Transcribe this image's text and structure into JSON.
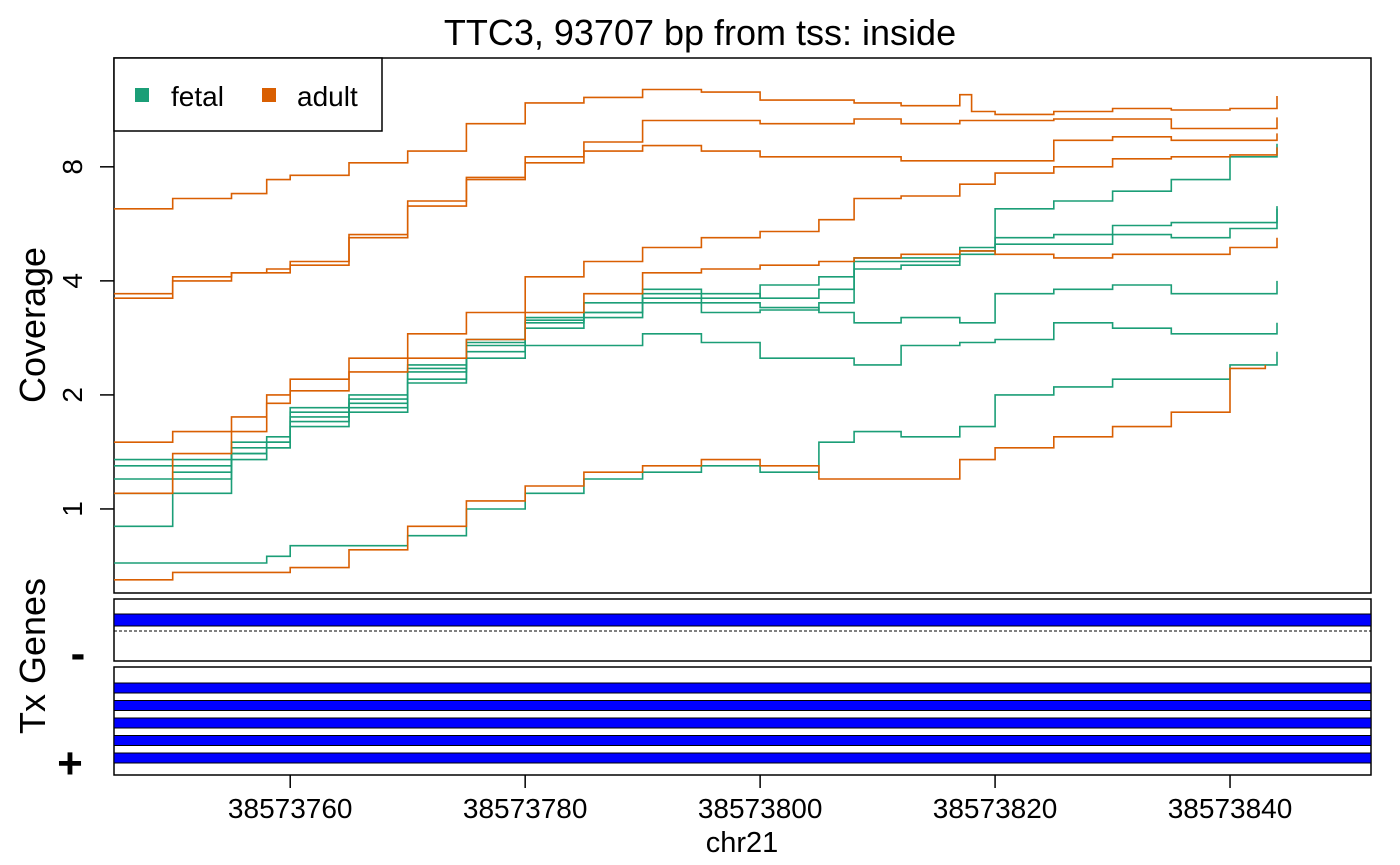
{
  "chart_data": {
    "type": "line",
    "title": "TTC3, 93707 bp from tss: inside",
    "xlabel": "chr21",
    "ylabel": "Coverage",
    "y_scale": "log",
    "x_range": [
      38573745,
      38573852
    ],
    "ylim": [
      0.6,
      15.5
    ],
    "y_ticks": [
      1,
      2,
      4,
      8
    ],
    "x_ticks": [
      38573760,
      38573780,
      38573800,
      38573820,
      38573840
    ],
    "legend": {
      "position": "top-left",
      "entries": [
        {
          "label": "fetal",
          "color": "#1b9e77"
        },
        {
          "label": "adult",
          "color": "#d95f02"
        }
      ]
    },
    "series": [
      {
        "group": "fetal",
        "color": "#1b9e77",
        "points": [
          [
            38573745,
            1.1
          ],
          [
            38573750,
            1.2
          ],
          [
            38573755,
            1.4
          ],
          [
            38573758,
            1.5
          ],
          [
            38573760,
            1.8
          ],
          [
            38573765,
            1.95
          ],
          [
            38573770,
            2.3
          ],
          [
            38573775,
            2.7
          ],
          [
            38573780,
            3.1
          ],
          [
            38573785,
            3.3
          ],
          [
            38573790,
            3.6
          ],
          [
            38573795,
            3.3
          ],
          [
            38573800,
            3.35
          ],
          [
            38573805,
            3.5
          ],
          [
            38573808,
            4.3
          ],
          [
            38573812,
            4.4
          ],
          [
            38573817,
            4.8
          ],
          [
            38573820,
            6.2
          ],
          [
            38573825,
            6.5
          ],
          [
            38573830,
            6.9
          ],
          [
            38573835,
            7.4
          ],
          [
            38573840,
            8.5
          ],
          [
            38573844,
            9.2
          ]
        ]
      },
      {
        "group": "fetal",
        "color": "#1b9e77",
        "points": [
          [
            38573745,
            1.3
          ],
          [
            38573750,
            1.35
          ],
          [
            38573755,
            1.5
          ],
          [
            38573758,
            1.55
          ],
          [
            38573760,
            1.85
          ],
          [
            38573765,
            2.0
          ],
          [
            38573770,
            2.4
          ],
          [
            38573775,
            2.8
          ],
          [
            38573780,
            3.2
          ],
          [
            38573785,
            3.5
          ],
          [
            38573790,
            3.8
          ],
          [
            38573795,
            3.7
          ],
          [
            38573800,
            3.6
          ],
          [
            38573805,
            3.8
          ],
          [
            38573808,
            4.5
          ],
          [
            38573812,
            4.5
          ],
          [
            38573817,
            4.9
          ],
          [
            38573820,
            5.2
          ],
          [
            38573825,
            5.3
          ],
          [
            38573830,
            5.6
          ],
          [
            38573835,
            5.7
          ],
          [
            38573840,
            5.7
          ],
          [
            38573844,
            6.3
          ]
        ]
      },
      {
        "group": "fetal",
        "color": "#1b9e77",
        "points": [
          [
            38573745,
            1.35
          ],
          [
            38573750,
            1.3
          ],
          [
            38573755,
            1.45
          ],
          [
            38573758,
            1.5
          ],
          [
            38573760,
            1.75
          ],
          [
            38573765,
            1.9
          ],
          [
            38573770,
            2.35
          ],
          [
            38573775,
            2.75
          ],
          [
            38573780,
            3.15
          ],
          [
            38573785,
            3.3
          ],
          [
            38573790,
            3.7
          ],
          [
            38573795,
            3.6
          ],
          [
            38573800,
            3.9
          ],
          [
            38573805,
            4.1
          ],
          [
            38573808,
            4.6
          ],
          [
            38573812,
            4.6
          ],
          [
            38573817,
            4.7
          ],
          [
            38573820,
            5.0
          ],
          [
            38573825,
            5.0
          ],
          [
            38573830,
            5.3
          ],
          [
            38573835,
            5.2
          ],
          [
            38573840,
            5.5
          ],
          [
            38573844,
            6.2
          ]
        ]
      },
      {
        "group": "fetal",
        "color": "#1b9e77",
        "points": [
          [
            38573745,
            0.9
          ],
          [
            38573750,
            1.1
          ],
          [
            38573755,
            1.35
          ],
          [
            38573758,
            1.45
          ],
          [
            38573760,
            1.65
          ],
          [
            38573765,
            1.85
          ],
          [
            38573770,
            2.2
          ],
          [
            38573775,
            2.6
          ],
          [
            38573780,
            3.0
          ],
          [
            38573785,
            3.2
          ],
          [
            38573790,
            3.5
          ],
          [
            38573795,
            3.5
          ],
          [
            38573800,
            3.4
          ],
          [
            38573805,
            3.3
          ],
          [
            38573808,
            3.1
          ],
          [
            38573812,
            3.2
          ],
          [
            38573817,
            3.1
          ],
          [
            38573820,
            3.7
          ],
          [
            38573825,
            3.8
          ],
          [
            38573830,
            3.9
          ],
          [
            38573835,
            3.7
          ],
          [
            38573840,
            3.7
          ],
          [
            38573844,
            4.0
          ]
        ]
      },
      {
        "group": "fetal",
        "color": "#1b9e77",
        "points": [
          [
            38573745,
            1.2
          ],
          [
            38573750,
            1.25
          ],
          [
            38573755,
            1.4
          ],
          [
            38573758,
            1.45
          ],
          [
            38573760,
            1.7
          ],
          [
            38573765,
            1.8
          ],
          [
            38573770,
            2.15
          ],
          [
            38573775,
            2.5
          ],
          [
            38573780,
            2.7
          ],
          [
            38573785,
            2.7
          ],
          [
            38573790,
            2.9
          ],
          [
            38573795,
            2.75
          ],
          [
            38573800,
            2.5
          ],
          [
            38573805,
            2.5
          ],
          [
            38573808,
            2.4
          ],
          [
            38573812,
            2.7
          ],
          [
            38573817,
            2.75
          ],
          [
            38573820,
            2.8
          ],
          [
            38573825,
            3.1
          ],
          [
            38573830,
            3.0
          ],
          [
            38573835,
            2.9
          ],
          [
            38573840,
            2.9
          ],
          [
            38573844,
            3.1
          ]
        ]
      },
      {
        "group": "fetal",
        "color": "#1b9e77",
        "points": [
          [
            38573745,
            0.72
          ],
          [
            38573750,
            0.72
          ],
          [
            38573755,
            0.72
          ],
          [
            38573758,
            0.75
          ],
          [
            38573760,
            0.8
          ],
          [
            38573765,
            0.8
          ],
          [
            38573770,
            0.85
          ],
          [
            38573775,
            1.0
          ],
          [
            38573780,
            1.1
          ],
          [
            38573785,
            1.2
          ],
          [
            38573790,
            1.25
          ],
          [
            38573795,
            1.3
          ],
          [
            38573800,
            1.25
          ],
          [
            38573805,
            1.5
          ],
          [
            38573808,
            1.6
          ],
          [
            38573812,
            1.55
          ],
          [
            38573817,
            1.65
          ],
          [
            38573820,
            2.0
          ],
          [
            38573825,
            2.1
          ],
          [
            38573830,
            2.2
          ],
          [
            38573835,
            2.2
          ],
          [
            38573840,
            2.4
          ],
          [
            38573844,
            2.6
          ]
        ]
      },
      {
        "group": "adult",
        "color": "#d95f02",
        "points": [
          [
            38573745,
            6.2
          ],
          [
            38573750,
            6.6
          ],
          [
            38573755,
            6.8
          ],
          [
            38573758,
            7.4
          ],
          [
            38573760,
            7.6
          ],
          [
            38573765,
            8.2
          ],
          [
            38573770,
            8.8
          ],
          [
            38573775,
            10.4
          ],
          [
            38573780,
            11.8
          ],
          [
            38573785,
            12.2
          ],
          [
            38573790,
            12.8
          ],
          [
            38573795,
            12.6
          ],
          [
            38573800,
            12.0
          ],
          [
            38573805,
            12.0
          ],
          [
            38573808,
            11.8
          ],
          [
            38573812,
            11.6
          ],
          [
            38573817,
            12.4
          ],
          [
            38573818,
            11.2
          ],
          [
            38573820,
            11.0
          ],
          [
            38573825,
            11.2
          ],
          [
            38573830,
            11.4
          ],
          [
            38573835,
            11.3
          ],
          [
            38573840,
            11.4
          ],
          [
            38573844,
            12.3
          ]
        ]
      },
      {
        "group": "adult",
        "color": "#d95f02",
        "points": [
          [
            38573745,
            3.7
          ],
          [
            38573750,
            4.1
          ],
          [
            38573755,
            4.2
          ],
          [
            38573758,
            4.2
          ],
          [
            38573760,
            4.4
          ],
          [
            38573765,
            5.2
          ],
          [
            38573770,
            6.5
          ],
          [
            38573775,
            7.5
          ],
          [
            38573780,
            8.5
          ],
          [
            38573785,
            9.3
          ],
          [
            38573790,
            10.6
          ],
          [
            38573795,
            10.6
          ],
          [
            38573800,
            10.4
          ],
          [
            38573805,
            10.4
          ],
          [
            38573808,
            10.7
          ],
          [
            38573812,
            10.4
          ],
          [
            38573817,
            10.6
          ],
          [
            38573820,
            10.6
          ],
          [
            38573825,
            10.7
          ],
          [
            38573830,
            10.7
          ],
          [
            38573835,
            10.1
          ],
          [
            38573840,
            10.1
          ],
          [
            38573844,
            10.8
          ]
        ]
      },
      {
        "group": "adult",
        "color": "#d95f02",
        "points": [
          [
            38573745,
            3.6
          ],
          [
            38573750,
            4.0
          ],
          [
            38573755,
            4.2
          ],
          [
            38573758,
            4.3
          ],
          [
            38573760,
            4.5
          ],
          [
            38573765,
            5.3
          ],
          [
            38573770,
            6.3
          ],
          [
            38573775,
            7.4
          ],
          [
            38573780,
            8.2
          ],
          [
            38573785,
            8.8
          ],
          [
            38573790,
            9.1
          ],
          [
            38573795,
            8.8
          ],
          [
            38573800,
            8.5
          ],
          [
            38573805,
            8.5
          ],
          [
            38573808,
            8.5
          ],
          [
            38573812,
            8.3
          ],
          [
            38573817,
            8.3
          ],
          [
            38573820,
            8.3
          ],
          [
            38573825,
            9.4
          ],
          [
            38573830,
            9.6
          ],
          [
            38573835,
            9.4
          ],
          [
            38573840,
            9.4
          ],
          [
            38573844,
            9.8
          ]
        ]
      },
      {
        "group": "adult",
        "color": "#d95f02",
        "points": [
          [
            38573745,
            1.5
          ],
          [
            38573750,
            1.6
          ],
          [
            38573755,
            1.75
          ],
          [
            38573758,
            2.0
          ],
          [
            38573760,
            2.05
          ],
          [
            38573765,
            2.3
          ],
          [
            38573770,
            2.5
          ],
          [
            38573775,
            2.8
          ],
          [
            38573780,
            3.3
          ],
          [
            38573785,
            3.7
          ],
          [
            38573790,
            4.2
          ],
          [
            38573795,
            4.3
          ],
          [
            38573800,
            4.4
          ],
          [
            38573805,
            4.5
          ],
          [
            38573808,
            4.6
          ],
          [
            38573812,
            4.7
          ],
          [
            38573817,
            4.8
          ],
          [
            38573820,
            4.7
          ],
          [
            38573825,
            4.6
          ],
          [
            38573830,
            4.7
          ],
          [
            38573835,
            4.7
          ],
          [
            38573840,
            4.9
          ],
          [
            38573844,
            5.2
          ]
        ]
      },
      {
        "group": "adult",
        "color": "#d95f02",
        "points": [
          [
            38573745,
            1.1
          ],
          [
            38573750,
            1.4
          ],
          [
            38573755,
            1.6
          ],
          [
            38573758,
            1.9
          ],
          [
            38573760,
            2.2
          ],
          [
            38573765,
            2.5
          ],
          [
            38573770,
            2.9
          ],
          [
            38573775,
            3.3
          ],
          [
            38573780,
            4.1
          ],
          [
            38573785,
            4.5
          ],
          [
            38573790,
            4.9
          ],
          [
            38573795,
            5.2
          ],
          [
            38573800,
            5.4
          ],
          [
            38573805,
            5.8
          ],
          [
            38573808,
            6.6
          ],
          [
            38573812,
            6.7
          ],
          [
            38573817,
            7.2
          ],
          [
            38573820,
            7.7
          ],
          [
            38573825,
            8.0
          ],
          [
            38573830,
            8.4
          ],
          [
            38573835,
            8.5
          ],
          [
            38573840,
            8.6
          ],
          [
            38573844,
            9.0
          ]
        ]
      },
      {
        "group": "adult",
        "color": "#d95f02",
        "points": [
          [
            38573745,
            0.65
          ],
          [
            38573750,
            0.68
          ],
          [
            38573755,
            0.68
          ],
          [
            38573758,
            0.68
          ],
          [
            38573760,
            0.7
          ],
          [
            38573765,
            0.78
          ],
          [
            38573770,
            0.9
          ],
          [
            38573775,
            1.05
          ],
          [
            38573780,
            1.15
          ],
          [
            38573785,
            1.25
          ],
          [
            38573790,
            1.3
          ],
          [
            38573795,
            1.35
          ],
          [
            38573800,
            1.3
          ],
          [
            38573805,
            1.2
          ],
          [
            38573808,
            1.2
          ],
          [
            38573812,
            1.2
          ],
          [
            38573817,
            1.35
          ],
          [
            38573820,
            1.45
          ],
          [
            38573825,
            1.55
          ],
          [
            38573830,
            1.65
          ],
          [
            38573835,
            1.8
          ],
          [
            38573839,
            1.8
          ],
          [
            38573840,
            2.35
          ],
          [
            38573843,
            2.4
          ]
        ]
      }
    ],
    "tracks": {
      "ylabel": "Tx Genes",
      "minus_label": "-",
      "plus_label": "+",
      "minus_strand_transcripts": 1,
      "plus_strand_transcripts": 5,
      "feature_color": "#0000ff"
    }
  }
}
